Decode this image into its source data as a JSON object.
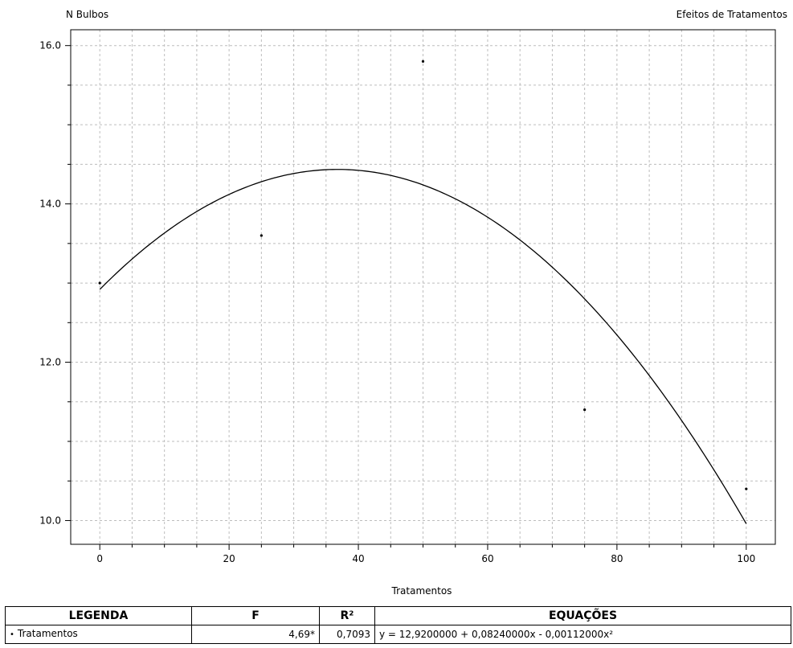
{
  "chart_data": {
    "type": "scatter",
    "title": "Efeitos de Tratamentos",
    "ylabel": "N Bulbos",
    "xlabel": "Tratamentos",
    "xlim": [
      -4.5,
      104.5
    ],
    "ylim": [
      9.7,
      16.2
    ],
    "x_ticks": [
      0,
      20,
      40,
      60,
      80,
      100
    ],
    "y_ticks": [
      10.0,
      12.0,
      14.0,
      16.0
    ],
    "grid": true,
    "series": [
      {
        "name": "Tratamentos",
        "x": [
          0,
          25,
          50,
          75,
          100
        ],
        "y": [
          13.0,
          13.6,
          15.8,
          11.4,
          10.4
        ]
      }
    ],
    "fit": {
      "type": "quadratic",
      "coefficients": [
        12.92,
        0.0824,
        -0.00112
      ],
      "x_range": [
        0,
        100
      ]
    }
  },
  "legend_table": {
    "headers": {
      "legend": "LEGENDA",
      "f": "F",
      "r2": "R²",
      "equations": "EQUAÇÕES"
    },
    "rows": [
      {
        "marker": "•",
        "name": "Tratamentos",
        "f": "4,69*",
        "r2": "0,7093",
        "equation": "y = 12,9200000 + 0,08240000x - 0,00112000x²"
      }
    ]
  }
}
